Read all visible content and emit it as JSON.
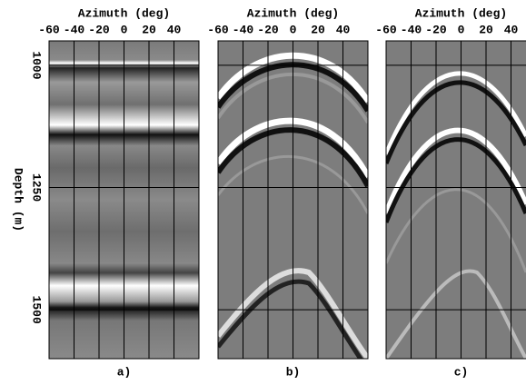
{
  "chart_data": [
    {
      "type": "image",
      "xlabel": "Azimuth (deg)",
      "ylabel": "Depth (m)",
      "caption": "a)",
      "xlim": [
        -60,
        60
      ],
      "ylim": [
        1600,
        950
      ],
      "xticks": [
        -60,
        -40,
        -20,
        0,
        20,
        40
      ],
      "yticks": [
        1000,
        1250,
        1500
      ],
      "grid": true
    },
    {
      "type": "image",
      "xlabel": "Azimuth (deg)",
      "caption": "b)",
      "xlim": [
        -60,
        60
      ],
      "ylim": [
        1600,
        950
      ],
      "xticks": [
        -60,
        -40,
        -20,
        0,
        20,
        40
      ],
      "yticks": [
        1000,
        1250,
        1500
      ],
      "grid": true
    },
    {
      "type": "image",
      "xlabel": "Azimuth (deg)",
      "caption": "c)",
      "xlim": [
        -60,
        60
      ],
      "ylim": [
        1600,
        950
      ],
      "xticks": [
        -60,
        -40,
        -20,
        0,
        20,
        40
      ],
      "yticks": [
        1000,
        1250,
        1500
      ],
      "grid": true
    }
  ]
}
